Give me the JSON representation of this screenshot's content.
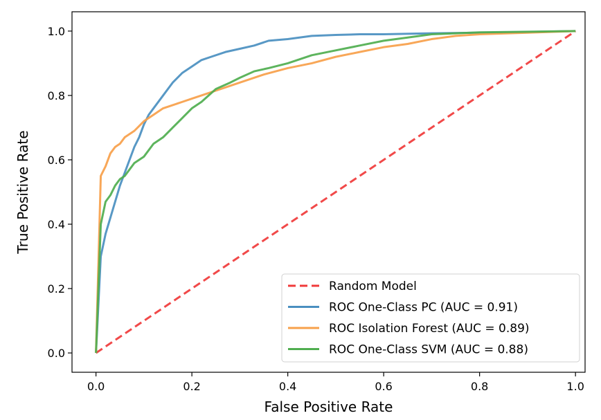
{
  "chart_data": {
    "type": "line",
    "xlabel": "False Positive Rate",
    "ylabel": "True Positive Rate",
    "xlim": [
      -0.05,
      1.02
    ],
    "ylim": [
      -0.06,
      1.06
    ],
    "xticks": [
      0.0,
      0.2,
      0.4,
      0.6,
      0.8,
      1.0
    ],
    "yticks": [
      0.0,
      0.2,
      0.4,
      0.6,
      0.8,
      1.0
    ],
    "xtick_labels": [
      "0.0",
      "0.2",
      "0.4",
      "0.6",
      "0.8",
      "1.0"
    ],
    "ytick_labels": [
      "0.0",
      "0.2",
      "0.4",
      "0.6",
      "0.8",
      "1.0"
    ],
    "grid": false,
    "legend_position": "lower-right",
    "series": [
      {
        "name": "Random Model",
        "color": "#f03a3a",
        "style": "dashed",
        "x": [
          0,
          1
        ],
        "y": [
          0,
          1
        ]
      },
      {
        "name": "ROC One-Class PC (AUC = 0.91)",
        "color": "#4a8fc0",
        "style": "solid",
        "x": [
          0,
          0.01,
          0.02,
          0.03,
          0.04,
          0.05,
          0.06,
          0.07,
          0.08,
          0.09,
          0.1,
          0.11,
          0.12,
          0.14,
          0.16,
          0.18,
          0.2,
          0.22,
          0.24,
          0.27,
          0.3,
          0.33,
          0.36,
          0.4,
          0.45,
          0.5,
          0.55,
          0.6,
          0.7,
          0.8,
          0.9,
          1.0
        ],
        "y": [
          0,
          0.3,
          0.37,
          0.42,
          0.47,
          0.52,
          0.56,
          0.6,
          0.64,
          0.67,
          0.71,
          0.74,
          0.76,
          0.8,
          0.84,
          0.87,
          0.89,
          0.91,
          0.92,
          0.935,
          0.945,
          0.955,
          0.97,
          0.975,
          0.985,
          0.988,
          0.99,
          0.99,
          0.993,
          0.995,
          0.997,
          1.0
        ]
      },
      {
        "name": "ROC Isolation Forest (AUC = 0.89)",
        "color": "#f7a04a",
        "style": "solid",
        "x": [
          0,
          0.01,
          0.02,
          0.03,
          0.04,
          0.05,
          0.06,
          0.07,
          0.08,
          0.1,
          0.12,
          0.14,
          0.16,
          0.18,
          0.2,
          0.22,
          0.25,
          0.3,
          0.35,
          0.4,
          0.45,
          0.5,
          0.55,
          0.6,
          0.65,
          0.7,
          0.75,
          0.8,
          0.9,
          1.0
        ],
        "y": [
          0,
          0.55,
          0.58,
          0.62,
          0.64,
          0.65,
          0.67,
          0.68,
          0.69,
          0.72,
          0.74,
          0.76,
          0.77,
          0.78,
          0.79,
          0.8,
          0.815,
          0.84,
          0.865,
          0.885,
          0.9,
          0.92,
          0.935,
          0.95,
          0.96,
          0.975,
          0.985,
          0.99,
          0.995,
          1.0
        ]
      },
      {
        "name": "ROC One-Class SVM (AUC = 0.88)",
        "color": "#4fae4f",
        "style": "solid",
        "x": [
          0,
          0.01,
          0.02,
          0.03,
          0.04,
          0.05,
          0.06,
          0.07,
          0.08,
          0.1,
          0.12,
          0.14,
          0.16,
          0.18,
          0.2,
          0.22,
          0.25,
          0.28,
          0.3,
          0.33,
          0.36,
          0.4,
          0.45,
          0.5,
          0.55,
          0.6,
          0.65,
          0.7,
          0.75,
          0.8,
          0.9,
          1.0
        ],
        "y": [
          0,
          0.4,
          0.47,
          0.49,
          0.52,
          0.54,
          0.55,
          0.57,
          0.59,
          0.61,
          0.65,
          0.67,
          0.7,
          0.73,
          0.76,
          0.78,
          0.82,
          0.84,
          0.855,
          0.875,
          0.885,
          0.9,
          0.925,
          0.94,
          0.955,
          0.97,
          0.98,
          0.99,
          0.993,
          0.996,
          0.998,
          1.0
        ]
      }
    ]
  }
}
